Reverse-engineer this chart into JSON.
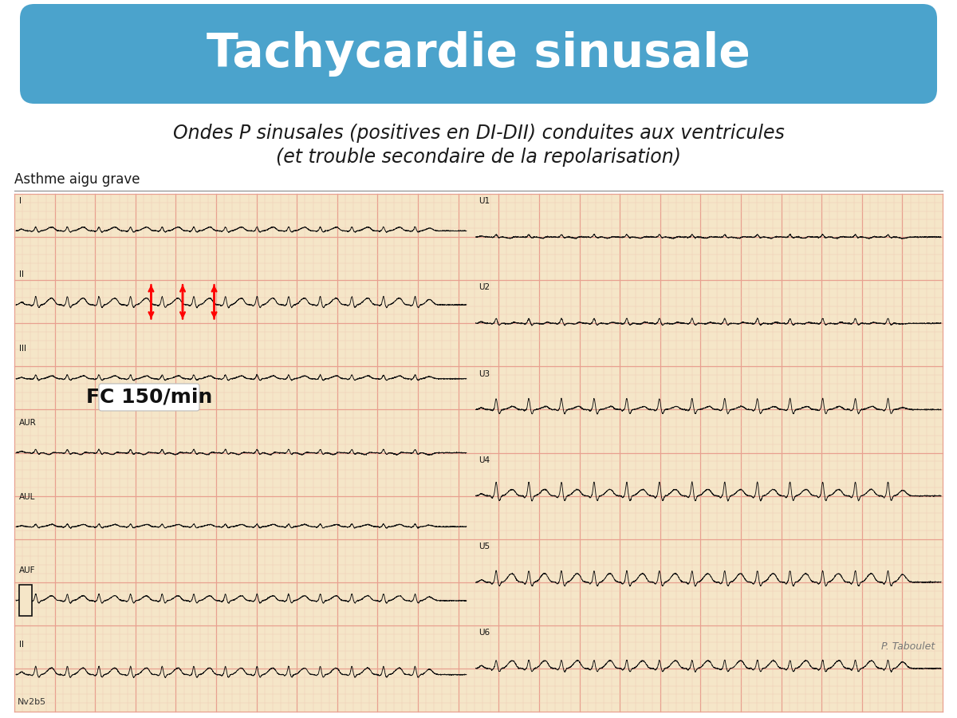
{
  "title": "Tachycardie sinusale",
  "title_color": "#ffffff",
  "title_bg_color": "#4BA3CC",
  "subtitle_line1": "Ondes P sinusales (positives en DI-DII) conduites aux ventricules",
  "subtitle_line2": "(et trouble secondaire de la repolarisation)",
  "subtitle_fontsize": 17,
  "label_asthme": "Asthme aigu grave",
  "label_fc": "FC 150/min",
  "label_taboulet": "P. Taboulet",
  "label_nv2b5": "Nv2b5",
  "ecg_bg_color": "#F5E6C8",
  "ecg_grid_major_color": "#E8A090",
  "ecg_grid_minor_color": "#F0C8B0",
  "leads_left": [
    "I",
    "II",
    "III",
    "AUR",
    "AUL",
    "AUF",
    "II"
  ],
  "leads_right": [
    "U1",
    "U2",
    "U3",
    "U4",
    "U5",
    "U6"
  ],
  "bg_color": "#ffffff",
  "title_fontsize": 42,
  "label_fontsize": 11,
  "fc_fontsize": 18
}
